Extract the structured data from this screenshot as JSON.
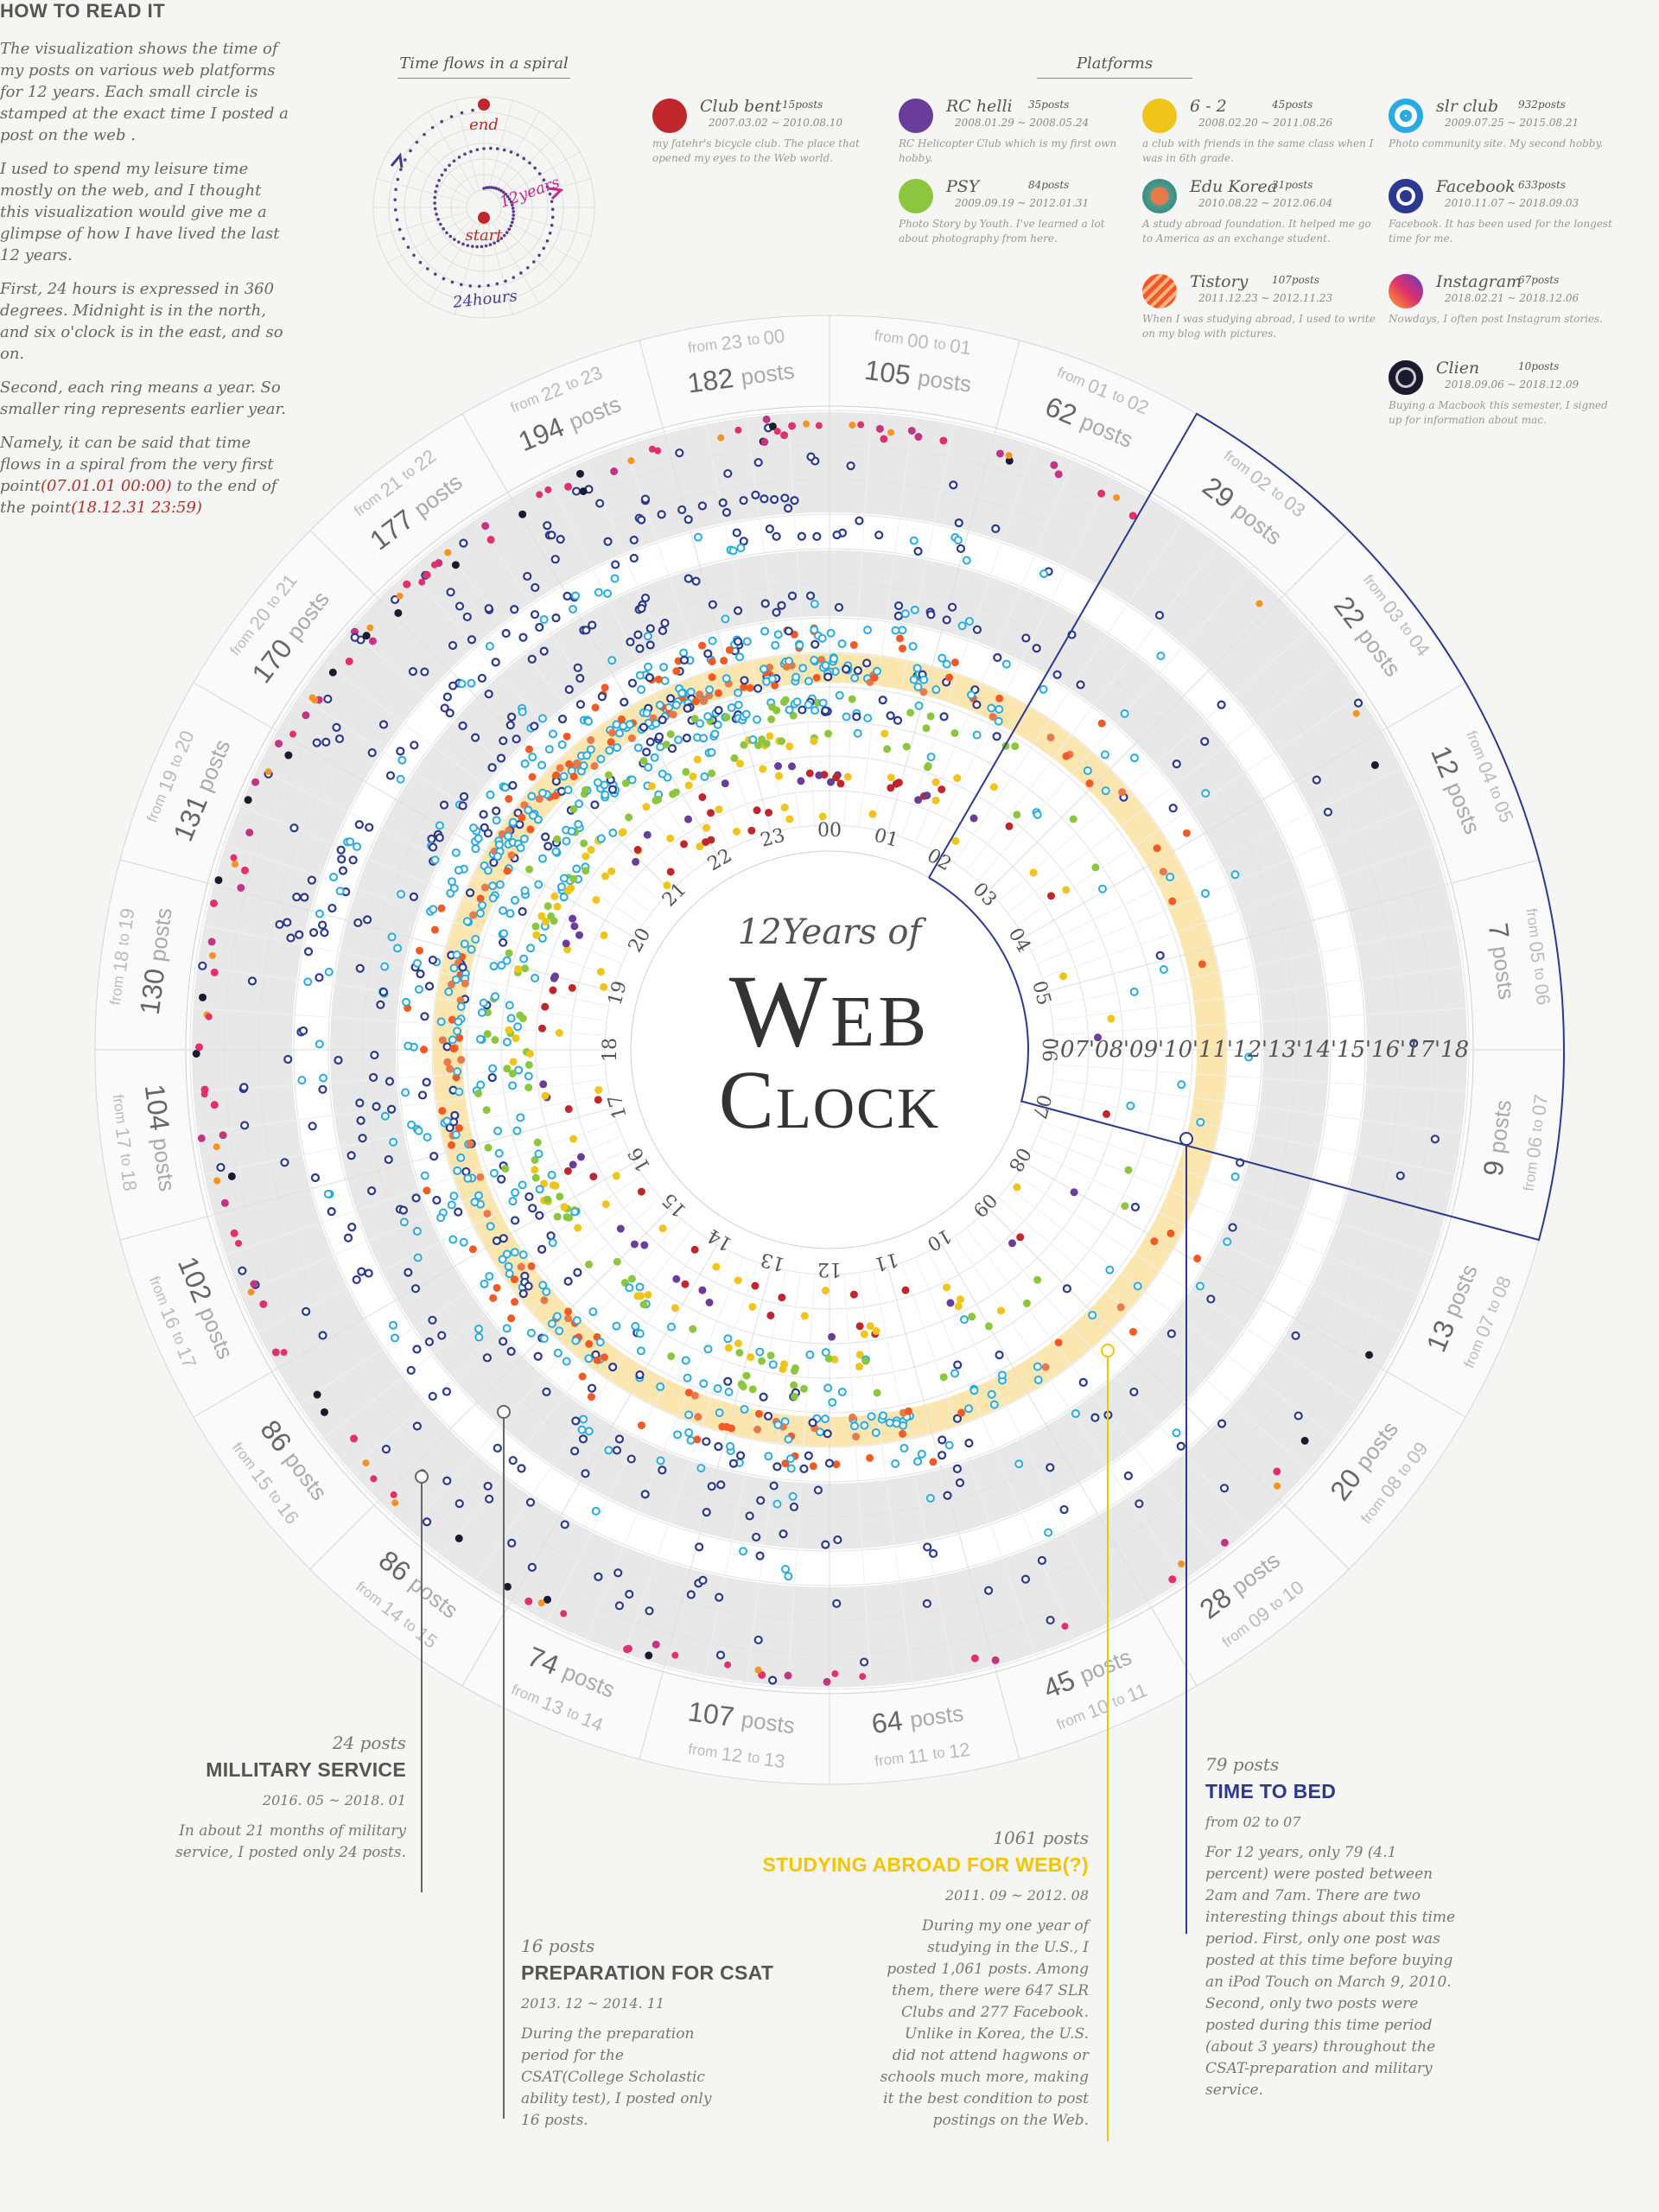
{
  "howto": {
    "title": "HOW TO READ IT",
    "p1": "The visualization shows the time of my posts on various web platforms for 12 years. Each small circle is stamped at the exact time I posted a post on the web .",
    "p2": "I used to spend my leisure time mostly on the web, and I thought this visualization would give me a glimpse of how I have lived the last 12 years.",
    "p3": "First, 24 hours is expressed in 360 degrees. Midnight is in the north, and six o'clock is in the east, and so on.",
    "p4": "Second, each ring means a year. So smaller ring represents earlier year.",
    "p5_pre": "Namely, it can be said that time flows in a spiral from the very first point",
    "p5_start": "(07.01.01 00:00)",
    "p5_mid": "to the end of the point",
    "p5_end": "(18.12.31 23:59)"
  },
  "spiral_legend": {
    "title": "Time flows in a spiral",
    "end": "end",
    "start": "start",
    "years": "12years",
    "hours": "24hours"
  },
  "platforms": {
    "title": "Platforms",
    "items": [
      {
        "name": "Club bent",
        "count": "15posts",
        "dates": "2007.03.02 ~ 2010.08.10",
        "desc": "my fatehr's bicycle club. The place that opened my eyes to the Web world.",
        "color": "#c0272d",
        "style": "solid"
      },
      {
        "name": "RC helli",
        "count": "35posts",
        "dates": "2008.01.29 ~ 2008.05.24",
        "desc": "RC Helicopter Club which is my first own hobby.",
        "color": "#6a3d9a",
        "style": "solid"
      },
      {
        "name": "6 - 2",
        "count": "45posts",
        "dates": "2008.02.20 ~ 2011.08.26",
        "desc": "a club with friends in the same class when I was in 6th grade.",
        "color": "#f0c419",
        "style": "solid"
      },
      {
        "name": "slr club",
        "count": "932posts",
        "dates": "2009.07.25 ~ 2015.08.21",
        "desc": "Photo community site. My second hobby.",
        "color": "#29abe2",
        "style": "ring"
      },
      {
        "name": "PSY",
        "count": "84posts",
        "dates": "2009.09.19 ~ 2012.01.31",
        "desc": "Photo Story by Youth. I've learned a lot about photography from here.",
        "color": "#8cc63f",
        "style": "solid"
      },
      {
        "name": "Edu Korea",
        "count": "31posts",
        "dates": "2010.08.22 ~ 2012.06.04",
        "desc": "A study abroad foundation. It helped me go to America as an exchange student.",
        "color": "#e8794b",
        "style": "edu"
      },
      {
        "name": "Facebook",
        "count": "633posts",
        "dates": "2010.11.07 ~ 2018.09.03",
        "desc": "Facebook. It has been used for the longest time for me.",
        "color": "#2b3990",
        "style": "ring2"
      },
      {
        "name": "Tistory",
        "count": "107posts",
        "dates": "2011.12.23 ~ 2012.11.23",
        "desc": "When I was studying abroad, I used to write on my blog with pictures.",
        "color": "#f15a24",
        "style": "stripe"
      },
      {
        "name": "Instagram",
        "count": "67posts",
        "dates": "2018.02.21 ~ 2018.12.06",
        "desc": "Nowdays, I often post Instagram stories.",
        "color": "#c13584",
        "style": "insta"
      },
      {
        "name": "Clien",
        "count": "10posts",
        "dates": "2018.09.06 ~ 2018.12.09",
        "desc": "Buying a Macbook this semester, I signed up for information about mac.",
        "color": "#1b1b2f",
        "style": "clien"
      }
    ]
  },
  "clock": {
    "title_italic": "12Years of",
    "title_web": "Web",
    "title_clock": "Clock",
    "hours": [
      "00",
      "01",
      "02",
      "03",
      "04",
      "05",
      "06",
      "07",
      "08",
      "09",
      "10",
      "11",
      "12",
      "13",
      "14",
      "15",
      "16",
      "17",
      "18",
      "19",
      "20",
      "21",
      "22",
      "23"
    ],
    "years": [
      "'07",
      "'08",
      "'09",
      "'10",
      "'11",
      "'12",
      "'13",
      "'14",
      "'15",
      "'16",
      "'17",
      "'18"
    ],
    "posts_word": "posts",
    "from_word": "from",
    "to_word": "to",
    "hour_posts": [
      105,
      62,
      29,
      22,
      12,
      7,
      9,
      13,
      20,
      28,
      45,
      64,
      107,
      74,
      86,
      86,
      102,
      104,
      130,
      131,
      170,
      177,
      194,
      182
    ],
    "hour_ranges": [
      [
        "00",
        "01"
      ],
      [
        "01",
        "02"
      ],
      [
        "02",
        "03"
      ],
      [
        "03",
        "04"
      ],
      [
        "04",
        "05"
      ],
      [
        "05",
        "06"
      ],
      [
        "06",
        "07"
      ],
      [
        "07",
        "08"
      ],
      [
        "08",
        "09"
      ],
      [
        "09",
        "10"
      ],
      [
        "10",
        "11"
      ],
      [
        "11",
        "12"
      ],
      [
        "12",
        "13"
      ],
      [
        "13",
        "14"
      ],
      [
        "14",
        "15"
      ],
      [
        "15",
        "16"
      ],
      [
        "16",
        "17"
      ],
      [
        "17",
        "18"
      ],
      [
        "18",
        "19"
      ],
      [
        "19",
        "20"
      ],
      [
        "20",
        "21"
      ],
      [
        "21",
        "22"
      ],
      [
        "22",
        "23"
      ],
      [
        "23",
        "00"
      ]
    ]
  },
  "annotations": {
    "military": {
      "count": "24 posts",
      "title": "MILLITARY SERVICE",
      "period": "2016. 05 ~ 2018. 01",
      "text": "In about 21 months of military service, I posted only 24 posts."
    },
    "csat": {
      "count": "16 posts",
      "title": "PREPARATION FOR CSAT",
      "period": "2013. 12 ~ 2014. 11",
      "text": "During the preparation period for the CSAT(College Scholastic ability test), I posted only 16 posts."
    },
    "abroad": {
      "count": "1061 posts",
      "title": "STUDYING ABROAD FOR WEB(?)",
      "period": "2011. 09 ~ 2012. 08",
      "text": "During my one year of studying in the U.S., I posted 1,061 posts. Among them, there were 647 SLR Clubs and 277 Facebook. Unlike in Korea, the U.S. did not attend hagwons or schools much more, making it the best condition to post postings on the Web."
    },
    "bed": {
      "count": "79 posts",
      "title": "TIME TO BED",
      "period": "from 02 to 07",
      "text": "For 12 years, only 79 (4.1 percent) were posted between 2am and 7am. There are two interesting things about this time period. First, only one post was posted at this time before buying an iPod Touch on March 9, 2010. Second, only two posts were posted during this time period (about 3 years) throughout the CSAT-preparation and military service."
    }
  },
  "colors": {
    "military": "#555555",
    "abroad": "#f2c500",
    "bed": "#2b3990",
    "csat": "#555555"
  }
}
